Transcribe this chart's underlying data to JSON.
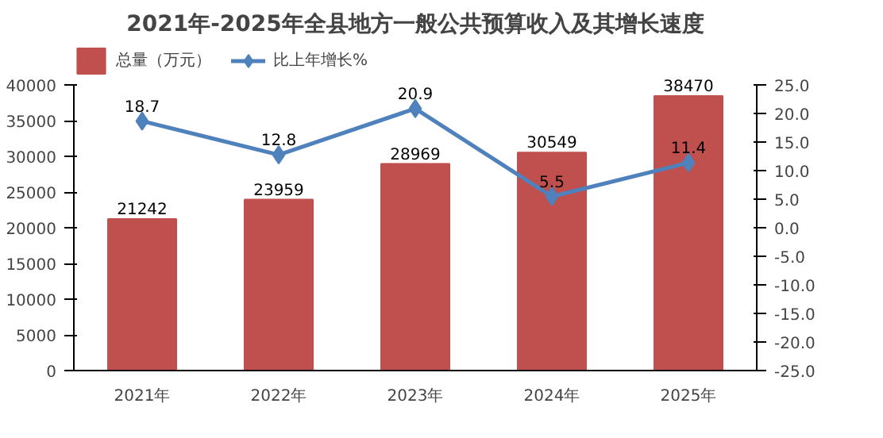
{
  "chart_data": {
    "type": "bar",
    "title": "2021年-2025年全县地方一般公共预算收入及其增长速度",
    "categories": [
      "2021年",
      "2022年",
      "2023年",
      "2024年",
      "2025年"
    ],
    "series": [
      {
        "name": "总量（万元）",
        "color": "#c0504d",
        "values": [
          21242,
          23959,
          28969,
          30549,
          38470
        ]
      },
      {
        "name": "比上年增长%",
        "type": "line",
        "axis": "y2",
        "color": "#4f81bd",
        "marker": "diamond",
        "values": [
          18.7,
          12.8,
          20.9,
          5.5,
          11.4
        ]
      }
    ],
    "ylim": [
      0,
      40000
    ],
    "yticks": [
      0,
      5000,
      10000,
      15000,
      20000,
      25000,
      30000,
      35000,
      40000
    ],
    "y2lim": [
      -25,
      25
    ],
    "y2ticks": [
      {
        "value": 25,
        "label": "25.0"
      },
      {
        "value": 20,
        "label": "20.0"
      },
      {
        "value": 15,
        "label": "15.0"
      },
      {
        "value": 10,
        "label": "10.0"
      },
      {
        "value": 5,
        "label": "5.0"
      },
      {
        "value": 0,
        "label": "0.0"
      },
      {
        "value": -5,
        "label": "-5.0"
      },
      {
        "value": -10,
        "label": "-10.0"
      },
      {
        "value": -15,
        "label": "-15.0"
      },
      {
        "value": -20,
        "label": "-20.0"
      },
      {
        "value": -25,
        "label": "-25.0"
      }
    ],
    "data_labels": true,
    "legend": "top left",
    "grid": false
  }
}
